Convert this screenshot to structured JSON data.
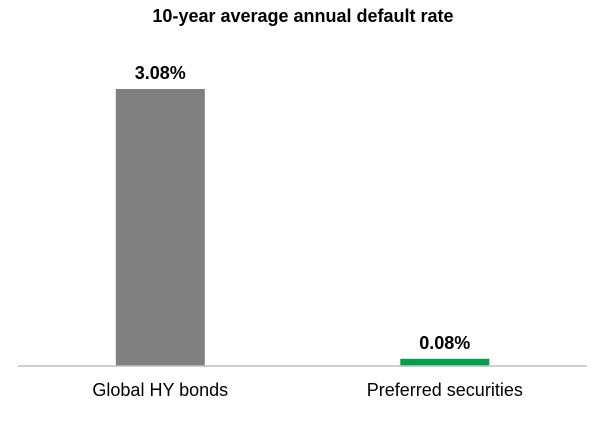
{
  "chart_data": {
    "type": "bar",
    "title": "10-year average annual default rate",
    "categories": [
      "Global HY bonds",
      "Preferred securities"
    ],
    "values": [
      3.08,
      0.08
    ],
    "value_labels": [
      "3.08%",
      "0.08%"
    ],
    "colors": [
      "#808080",
      "#00a14b"
    ],
    "ylim": [
      0,
      3.08
    ],
    "xlabel": "",
    "ylabel": "",
    "grid": false,
    "legend": "none",
    "axis_color": "#bfbfbf"
  }
}
